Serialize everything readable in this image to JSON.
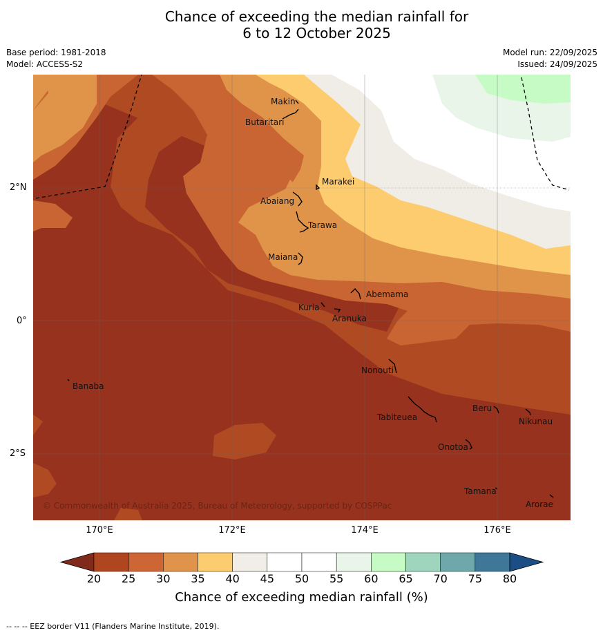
{
  "header": {
    "title_line1": "Chance of exceeding the median rainfall for",
    "title_line2": "6 to 12 October 2025",
    "base_period": "Base period: 1981-2018",
    "model": "Model: ACCESS-S2",
    "model_run": "Model run: 22/09/2025",
    "issued": "Issued: 24/09/2025"
  },
  "map": {
    "lat_labels": [
      "2°N",
      "0°",
      "2°S"
    ],
    "lon_labels": [
      "170°E",
      "172°E",
      "174°E",
      "176°E"
    ],
    "copyright": "© Commonwealth of Australia 2025, Bureau of Meteorology, supported by COSPPac",
    "islands": [
      "Makin",
      "Butaritari",
      "Marakei",
      "Abaiang",
      "Tarawa",
      "Maiana",
      "Abemama",
      "Kuria",
      "Aranuka",
      "Nonouti",
      "Banaba",
      "Tabiteuea",
      "Beru",
      "Nikunau",
      "Onotoa",
      "Tamana",
      "Arorae"
    ]
  },
  "colorbar": {
    "ticks": [
      "20",
      "25",
      "30",
      "35",
      "40",
      "45",
      "50",
      "55",
      "60",
      "65",
      "70",
      "75",
      "80"
    ],
    "colors": [
      "#7f2a1a",
      "#b0461f",
      "#cd6535",
      "#e0934a",
      "#fdcc6e",
      "#f1ede7",
      "#ffffff",
      "#ffffff",
      "#eaf5ea",
      "#c7fbc6",
      "#9fd5bd",
      "#6fa8aa",
      "#3e7798",
      "#1a4e84"
    ],
    "label": "Chance of exceeding median rainfall (%)"
  },
  "footnote": "--  --  -- EEZ border V11 (Flanders Marine Institute, 2019)."
}
